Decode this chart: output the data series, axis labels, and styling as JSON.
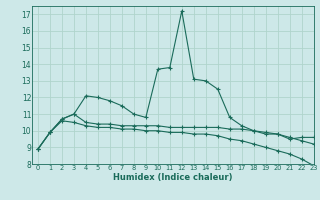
{
  "xlabel": "Humidex (Indice chaleur)",
  "bg_color": "#cde8e8",
  "grid_color": "#b0d4cc",
  "line_color": "#1a6b5a",
  "xlim": [
    -0.5,
    23
  ],
  "ylim": [
    8,
    17.5
  ],
  "yticks": [
    8,
    9,
    10,
    11,
    12,
    13,
    14,
    15,
    16,
    17
  ],
  "xticks": [
    0,
    1,
    2,
    3,
    4,
    5,
    6,
    7,
    8,
    9,
    10,
    11,
    12,
    13,
    14,
    15,
    16,
    17,
    18,
    19,
    20,
    21,
    22,
    23
  ],
  "line1_x": [
    0,
    1,
    2,
    3,
    4,
    5,
    6,
    7,
    8,
    9,
    10,
    11,
    12,
    13,
    14,
    15,
    16,
    17,
    18,
    19,
    20,
    21,
    22,
    23
  ],
  "line1_y": [
    8.9,
    9.9,
    10.7,
    11.0,
    12.1,
    12.0,
    11.8,
    11.5,
    11.0,
    10.8,
    13.7,
    13.8,
    17.2,
    13.1,
    13.0,
    12.5,
    10.8,
    10.3,
    10.0,
    9.8,
    9.8,
    9.5,
    9.6,
    9.6
  ],
  "line2_x": [
    0,
    1,
    2,
    3,
    4,
    5,
    6,
    7,
    8,
    9,
    10,
    11,
    12,
    13,
    14,
    15,
    16,
    17,
    18,
    19,
    20,
    21,
    22,
    23
  ],
  "line2_y": [
    8.9,
    9.9,
    10.7,
    11.0,
    10.5,
    10.4,
    10.4,
    10.3,
    10.3,
    10.3,
    10.3,
    10.2,
    10.2,
    10.2,
    10.2,
    10.2,
    10.1,
    10.1,
    10.0,
    9.9,
    9.8,
    9.6,
    9.4,
    9.2
  ],
  "line3_x": [
    0,
    1,
    2,
    3,
    4,
    5,
    6,
    7,
    8,
    9,
    10,
    11,
    12,
    13,
    14,
    15,
    16,
    17,
    18,
    19,
    20,
    21,
    22,
    23
  ],
  "line3_y": [
    8.9,
    9.9,
    10.6,
    10.5,
    10.3,
    10.2,
    10.2,
    10.1,
    10.1,
    10.0,
    10.0,
    9.9,
    9.9,
    9.8,
    9.8,
    9.7,
    9.5,
    9.4,
    9.2,
    9.0,
    8.8,
    8.6,
    8.3,
    7.9
  ]
}
